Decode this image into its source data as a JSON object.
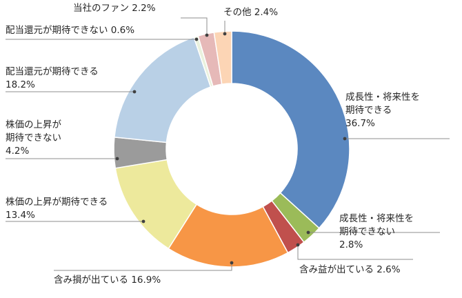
{
  "chart_data": {
    "type": "pie",
    "donut": true,
    "legend": "none",
    "slices": [
      {
        "lines": [
          "成長性・将来性を",
          "期待できる",
          "36.7%"
        ],
        "value": 36.7,
        "color": "#5b88c0"
      },
      {
        "lines": [
          "成長性・将来性を",
          "期待できない",
          "2.8%"
        ],
        "value": 2.8,
        "color": "#9bbb59"
      },
      {
        "lines": [
          "含み益が出ている 2.6%"
        ],
        "value": 2.6,
        "color": "#c0504d"
      },
      {
        "lines": [
          "含み損が出ている 16.9%"
        ],
        "value": 16.9,
        "color": "#f79646"
      },
      {
        "lines": [
          "株価の上昇が期待できる",
          "13.4%"
        ],
        "value": 13.4,
        "color": "#ede99c"
      },
      {
        "lines": [
          "株価の上昇が",
          "期待できない",
          "4.2%"
        ],
        "value": 4.2,
        "color": "#9b9b9b"
      },
      {
        "lines": [
          "配当還元が期待できる",
          "18.2%"
        ],
        "value": 18.2,
        "color": "#b9d0e6"
      },
      {
        "lines": [
          "配当還元が期待できない 0.6%"
        ],
        "value": 0.6,
        "color": "#eaf1dd"
      },
      {
        "lines": [
          "当社のファン 2.2%"
        ],
        "value": 2.2,
        "color": "#e6b9b8"
      },
      {
        "lines": [
          "その他 2.4%"
        ],
        "value": 2.4,
        "color": "#fcd5b5"
      }
    ]
  }
}
